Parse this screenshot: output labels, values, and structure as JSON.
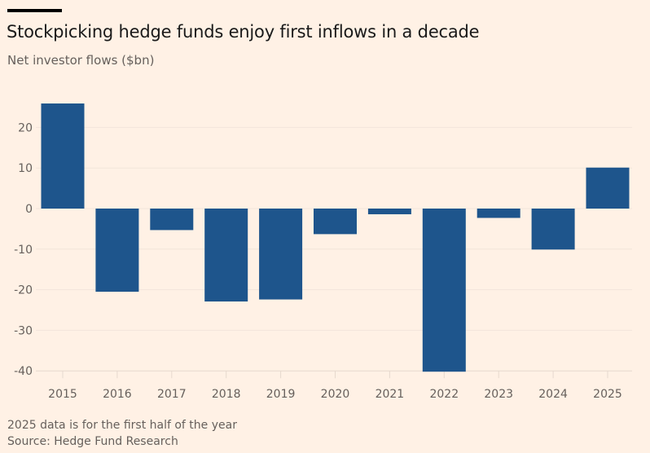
{
  "header": {
    "title": "Stockpicking hedge funds enjoy first inflows in a decade",
    "subtitle": "Net investor flows ($bn)"
  },
  "footer": {
    "note": "2025 data is for the first half of the year",
    "source": "Source: Hedge Fund Research"
  },
  "colors": {
    "bar": "#1e558c",
    "background": "#fff1e5",
    "gridline": "#f2e5da",
    "text": "#66605c"
  },
  "chart_data": {
    "type": "bar",
    "title": "Stockpicking hedge funds enjoy first inflows in a decade",
    "subtitle": "Net investor flows ($bn)",
    "xlabel": "",
    "ylabel": "Net investor flows ($bn)",
    "categories": [
      "2015",
      "2016",
      "2017",
      "2018",
      "2019",
      "2020",
      "2021",
      "2022",
      "2023",
      "2024",
      "2025"
    ],
    "values": [
      25.9,
      -20.5,
      -5.3,
      -22.9,
      -22.4,
      -6.3,
      -1.4,
      -40.2,
      -2.3,
      -10.1,
      10.1
    ],
    "ylim": [
      -40,
      26
    ],
    "yticks": [
      20,
      10,
      0,
      -10,
      -20,
      -30,
      -40
    ],
    "ytick_labels": [
      "20",
      "10",
      "0",
      "-10",
      "-20",
      "-30",
      "-40"
    ],
    "grid": true,
    "legend": "none",
    "annotations": [
      "2025 data is for the first half of the year",
      "Source: Hedge Fund Research"
    ]
  }
}
